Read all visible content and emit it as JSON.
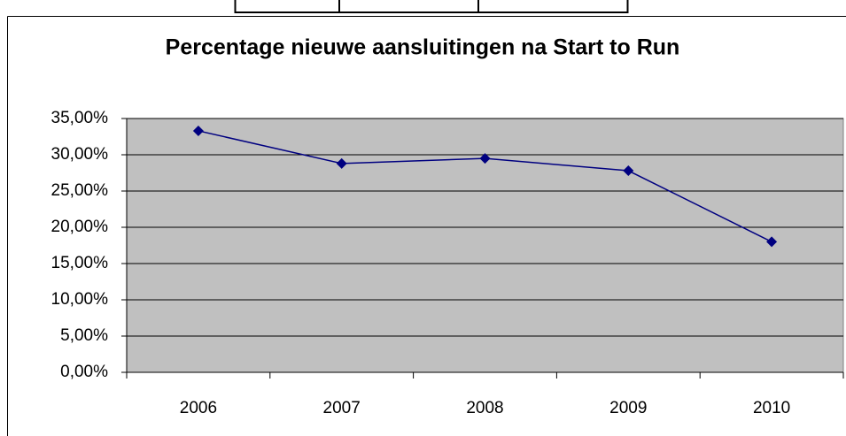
{
  "chart_data": {
    "type": "line",
    "title": "Percentage nieuwe aansluitingen na Start to Run",
    "categories": [
      "2006",
      "2007",
      "2008",
      "2009",
      "2010"
    ],
    "values": [
      33.3,
      28.8,
      29.5,
      27.8,
      18.0
    ],
    "color": "#000080",
    "ylim": [
      0,
      35
    ],
    "yticks": [
      {
        "value": 0,
        "label": "0,00%"
      },
      {
        "value": 5,
        "label": "5,00%"
      },
      {
        "value": 10,
        "label": "10,00%"
      },
      {
        "value": 15,
        "label": "15,00%"
      },
      {
        "value": 20,
        "label": "20,00%"
      },
      {
        "value": 25,
        "label": "25,00%"
      },
      {
        "value": 30,
        "label": "30,00%"
      },
      {
        "value": 35,
        "label": "35,00%"
      }
    ],
    "grid": true
  }
}
